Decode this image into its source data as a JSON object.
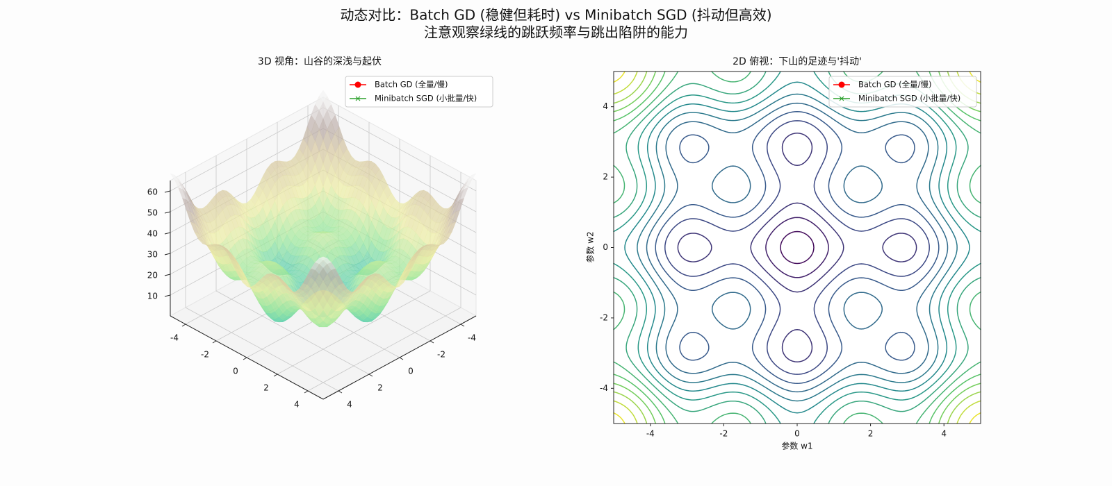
{
  "title": "动态对比：Batch GD (稳健但耗时) vs Minibatch SGD (抖动但高效)",
  "subtitle": "注意观察绿线的跳跃频率与跳出陷阱的能力",
  "chart_data": [
    {
      "type": "surface3d",
      "title": "3D 视角：山谷的深浅与起伏",
      "xlim": [
        -5,
        5
      ],
      "ylim": [
        -5,
        5
      ],
      "zlim": [
        0,
        65
      ],
      "xticks": [
        -4,
        -2,
        0,
        2,
        4
      ],
      "yticks": [
        -4,
        -2,
        0,
        2,
        4
      ],
      "zticks": [
        10,
        20,
        30,
        40,
        50,
        60
      ],
      "grid": true,
      "legend": "upper right",
      "series": [
        {
          "name": "Batch GD (全量/慢)",
          "color": "#ff0000",
          "marker": "o"
        },
        {
          "name": "Minibatch SGD (小批量/快)",
          "color": "#2ca02c",
          "marker": "x"
        }
      ]
    },
    {
      "type": "contour",
      "title": "2D 俯视：下山的足迹与'抖动'",
      "xlabel": "参数 w1",
      "ylabel": "参数 w2",
      "xlim": [
        -5,
        5
      ],
      "ylim": [
        -5,
        5
      ],
      "xticks": [
        -4,
        -2,
        0,
        2,
        4
      ],
      "yticks": [
        -4,
        -2,
        0,
        2,
        4
      ],
      "legend": "upper right",
      "series": [
        {
          "name": "Batch GD (全量/慢)",
          "color": "#ff0000",
          "marker": "o"
        },
        {
          "name": "Minibatch SGD (小批量/快)",
          "color": "#2ca02c",
          "marker": "x"
        }
      ]
    }
  ]
}
